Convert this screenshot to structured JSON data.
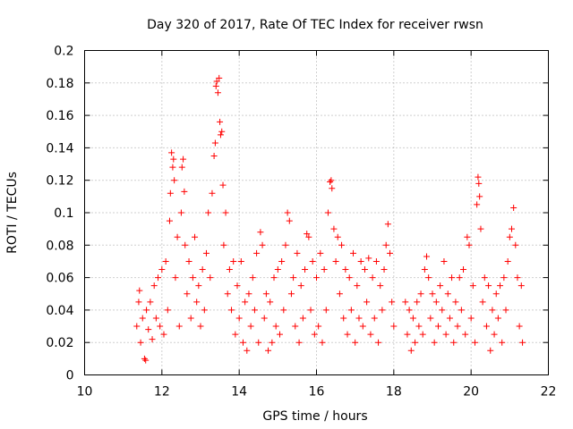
{
  "chart_data": {
    "type": "scatter",
    "title": "Day 320 of 2017, Rate Of TEC Index for receiver rwsn",
    "xlabel": "GPS time / hours",
    "ylabel": "ROTI / TECUs",
    "xlim": [
      10,
      22
    ],
    "ylim": [
      0,
      0.2
    ],
    "x_ticks": [
      "10",
      "12",
      "14",
      "16",
      "18",
      "20",
      "22"
    ],
    "y_ticks": [
      "0",
      "0.02",
      "0.04",
      "0.06",
      "0.08",
      "0.1",
      "0.12",
      "0.14",
      "0.16",
      "0.18",
      "0.2"
    ],
    "grid": true,
    "marker": "+",
    "color": "#ff0000",
    "series": [
      {
        "points": [
          [
            11.35,
            0.03
          ],
          [
            11.4,
            0.045
          ],
          [
            11.42,
            0.052
          ],
          [
            11.45,
            0.02
          ],
          [
            11.5,
            0.035
          ],
          [
            11.55,
            0.01
          ],
          [
            11.58,
            0.009
          ],
          [
            11.6,
            0.04
          ],
          [
            11.65,
            0.028
          ],
          [
            11.7,
            0.045
          ],
          [
            11.75,
            0.022
          ],
          [
            11.8,
            0.055
          ],
          [
            11.85,
            0.035
          ],
          [
            11.9,
            0.06
          ],
          [
            11.95,
            0.03
          ],
          [
            12.0,
            0.065
          ],
          [
            12.05,
            0.025
          ],
          [
            12.1,
            0.07
          ],
          [
            12.15,
            0.04
          ],
          [
            12.2,
            0.095
          ],
          [
            12.22,
            0.112
          ],
          [
            12.25,
            0.137
          ],
          [
            12.28,
            0.128
          ],
          [
            12.3,
            0.133
          ],
          [
            12.32,
            0.12
          ],
          [
            12.35,
            0.06
          ],
          [
            12.4,
            0.085
          ],
          [
            12.45,
            0.03
          ],
          [
            12.5,
            0.1
          ],
          [
            12.52,
            0.128
          ],
          [
            12.55,
            0.133
          ],
          [
            12.58,
            0.113
          ],
          [
            12.6,
            0.08
          ],
          [
            12.65,
            0.05
          ],
          [
            12.7,
            0.07
          ],
          [
            12.75,
            0.035
          ],
          [
            12.8,
            0.06
          ],
          [
            12.85,
            0.085
          ],
          [
            12.9,
            0.045
          ],
          [
            12.95,
            0.055
          ],
          [
            13.0,
            0.03
          ],
          [
            13.05,
            0.065
          ],
          [
            13.1,
            0.04
          ],
          [
            13.15,
            0.075
          ],
          [
            13.2,
            0.1
          ],
          [
            13.25,
            0.06
          ],
          [
            13.3,
            0.112
          ],
          [
            13.35,
            0.135
          ],
          [
            13.38,
            0.143
          ],
          [
            13.4,
            0.178
          ],
          [
            13.42,
            0.181
          ],
          [
            13.45,
            0.174
          ],
          [
            13.48,
            0.183
          ],
          [
            13.5,
            0.156
          ],
          [
            13.52,
            0.148
          ],
          [
            13.55,
            0.15
          ],
          [
            13.58,
            0.117
          ],
          [
            13.6,
            0.08
          ],
          [
            13.65,
            0.1
          ],
          [
            13.7,
            0.05
          ],
          [
            13.75,
            0.065
          ],
          [
            13.8,
            0.04
          ],
          [
            13.85,
            0.07
          ],
          [
            13.9,
            0.025
          ],
          [
            13.95,
            0.055
          ],
          [
            14.0,
            0.035
          ],
          [
            14.05,
            0.07
          ],
          [
            14.1,
            0.02
          ],
          [
            14.15,
            0.045
          ],
          [
            14.2,
            0.015
          ],
          [
            14.25,
            0.05
          ],
          [
            14.3,
            0.03
          ],
          [
            14.35,
            0.06
          ],
          [
            14.4,
            0.04
          ],
          [
            14.45,
            0.075
          ],
          [
            14.5,
            0.02
          ],
          [
            14.55,
            0.088
          ],
          [
            14.6,
            0.08
          ],
          [
            14.65,
            0.035
          ],
          [
            14.7,
            0.05
          ],
          [
            14.75,
            0.015
          ],
          [
            14.8,
            0.045
          ],
          [
            14.85,
            0.02
          ],
          [
            14.9,
            0.06
          ],
          [
            14.95,
            0.03
          ],
          [
            15.0,
            0.065
          ],
          [
            15.05,
            0.025
          ],
          [
            15.1,
            0.07
          ],
          [
            15.15,
            0.04
          ],
          [
            15.2,
            0.08
          ],
          [
            15.25,
            0.1
          ],
          [
            15.3,
            0.095
          ],
          [
            15.35,
            0.05
          ],
          [
            15.4,
            0.06
          ],
          [
            15.45,
            0.03
          ],
          [
            15.5,
            0.075
          ],
          [
            15.55,
            0.02
          ],
          [
            15.6,
            0.055
          ],
          [
            15.65,
            0.035
          ],
          [
            15.7,
            0.065
          ],
          [
            15.75,
            0.087
          ],
          [
            15.8,
            0.085
          ],
          [
            15.85,
            0.04
          ],
          [
            15.9,
            0.07
          ],
          [
            15.95,
            0.025
          ],
          [
            16.0,
            0.06
          ],
          [
            16.05,
            0.03
          ],
          [
            16.1,
            0.075
          ],
          [
            16.15,
            0.02
          ],
          [
            16.2,
            0.065
          ],
          [
            16.25,
            0.04
          ],
          [
            16.3,
            0.1
          ],
          [
            16.35,
            0.119
          ],
          [
            16.38,
            0.12
          ],
          [
            16.4,
            0.115
          ],
          [
            16.45,
            0.09
          ],
          [
            16.5,
            0.07
          ],
          [
            16.55,
            0.085
          ],
          [
            16.6,
            0.05
          ],
          [
            16.65,
            0.08
          ],
          [
            16.7,
            0.035
          ],
          [
            16.75,
            0.065
          ],
          [
            16.8,
            0.025
          ],
          [
            16.85,
            0.06
          ],
          [
            16.9,
            0.04
          ],
          [
            16.95,
            0.075
          ],
          [
            17.0,
            0.02
          ],
          [
            17.05,
            0.055
          ],
          [
            17.1,
            0.035
          ],
          [
            17.15,
            0.07
          ],
          [
            17.2,
            0.03
          ],
          [
            17.25,
            0.065
          ],
          [
            17.3,
            0.045
          ],
          [
            17.35,
            0.072
          ],
          [
            17.4,
            0.025
          ],
          [
            17.45,
            0.06
          ],
          [
            17.5,
            0.035
          ],
          [
            17.55,
            0.07
          ],
          [
            17.6,
            0.02
          ],
          [
            17.65,
            0.055
          ],
          [
            17.7,
            0.04
          ],
          [
            17.75,
            0.065
          ],
          [
            17.8,
            0.08
          ],
          [
            17.85,
            0.093
          ],
          [
            17.9,
            0.075
          ],
          [
            17.95,
            0.045
          ],
          [
            18.0,
            0.03
          ],
          [
            18.3,
            0.045
          ],
          [
            18.35,
            0.025
          ],
          [
            18.4,
            0.04
          ],
          [
            18.45,
            0.015
          ],
          [
            18.5,
            0.035
          ],
          [
            18.55,
            0.02
          ],
          [
            18.6,
            0.045
          ],
          [
            18.65,
            0.03
          ],
          [
            18.7,
            0.05
          ],
          [
            18.75,
            0.025
          ],
          [
            18.8,
            0.065
          ],
          [
            18.85,
            0.073
          ],
          [
            18.9,
            0.06
          ],
          [
            18.95,
            0.035
          ],
          [
            19.0,
            0.05
          ],
          [
            19.05,
            0.02
          ],
          [
            19.1,
            0.045
          ],
          [
            19.15,
            0.03
          ],
          [
            19.2,
            0.055
          ],
          [
            19.25,
            0.04
          ],
          [
            19.3,
            0.07
          ],
          [
            19.35,
            0.025
          ],
          [
            19.4,
            0.05
          ],
          [
            19.45,
            0.035
          ],
          [
            19.5,
            0.06
          ],
          [
            19.55,
            0.02
          ],
          [
            19.6,
            0.045
          ],
          [
            19.65,
            0.03
          ],
          [
            19.7,
            0.06
          ],
          [
            19.75,
            0.04
          ],
          [
            19.8,
            0.065
          ],
          [
            19.85,
            0.025
          ],
          [
            19.9,
            0.085
          ],
          [
            19.95,
            0.08
          ],
          [
            20.0,
            0.035
          ],
          [
            20.05,
            0.055
          ],
          [
            20.1,
            0.02
          ],
          [
            20.15,
            0.105
          ],
          [
            20.18,
            0.122
          ],
          [
            20.2,
            0.118
          ],
          [
            20.22,
            0.11
          ],
          [
            20.25,
            0.09
          ],
          [
            20.3,
            0.045
          ],
          [
            20.35,
            0.06
          ],
          [
            20.4,
            0.03
          ],
          [
            20.45,
            0.055
          ],
          [
            20.5,
            0.015
          ],
          [
            20.55,
            0.04
          ],
          [
            20.6,
            0.025
          ],
          [
            20.65,
            0.05
          ],
          [
            20.7,
            0.035
          ],
          [
            20.75,
            0.055
          ],
          [
            20.8,
            0.02
          ],
          [
            20.85,
            0.06
          ],
          [
            20.9,
            0.04
          ],
          [
            20.95,
            0.07
          ],
          [
            21.0,
            0.085
          ],
          [
            21.05,
            0.09
          ],
          [
            21.1,
            0.103
          ],
          [
            21.15,
            0.08
          ],
          [
            21.2,
            0.06
          ],
          [
            21.25,
            0.03
          ],
          [
            21.3,
            0.055
          ],
          [
            21.33,
            0.02
          ]
        ]
      }
    ]
  }
}
